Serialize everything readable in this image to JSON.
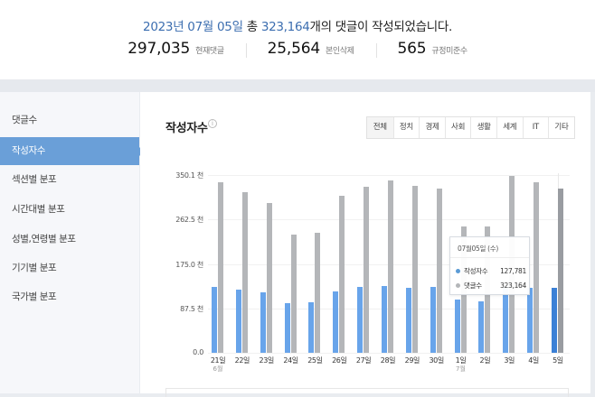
{
  "header": {
    "date_text": "2023년 07월 05일",
    "total_prefix": "총",
    "total_count": "323,164",
    "suffix": "개의 댓글이 작성되었습니다.",
    "stats": [
      {
        "value": "297,035",
        "label": "현재댓글"
      },
      {
        "value": "25,564",
        "label": "본인삭제"
      },
      {
        "value": "565",
        "label": "규정미준수"
      }
    ]
  },
  "sidebar": {
    "items": [
      {
        "label": "댓글수",
        "active": false
      },
      {
        "label": "작성자수",
        "active": true
      },
      {
        "label": "섹션별 분포",
        "active": false
      },
      {
        "label": "시간대별 분포",
        "active": false
      },
      {
        "label": "성별,연령별 분포",
        "active": false
      },
      {
        "label": "기기별 분포",
        "active": false
      },
      {
        "label": "국가별 분포",
        "active": false
      }
    ]
  },
  "main": {
    "title": "작성자수",
    "info_icon": "i",
    "tabs": [
      "전체",
      "정치",
      "경제",
      "사회",
      "생활",
      "세계",
      "IT",
      "기타"
    ],
    "selected_tab": "전체"
  },
  "tooltip": {
    "date": "07월05일 (수)",
    "rows": [
      {
        "label": "작성자수",
        "value": "127,781",
        "color": "#5b9bd5"
      },
      {
        "label": "댓글수",
        "value": "323,164",
        "color": "#b4b6b9"
      }
    ]
  },
  "chart_data": {
    "type": "bar",
    "title": "작성자수",
    "xlabel": "",
    "ylabel": "",
    "ylim": [
      0,
      350.1
    ],
    "y_unit": "천",
    "y_ticks": [
      "350.1 천",
      "262.5 천",
      "175.0 천",
      "87.5 천",
      "0.0"
    ],
    "y_tick_values": [
      350.1,
      262.5,
      175.0,
      87.5,
      0.0
    ],
    "grid": true,
    "categories": [
      "21일",
      "22일",
      "23일",
      "24일",
      "25일",
      "26일",
      "27일",
      "28일",
      "29일",
      "30일",
      "1일",
      "2일",
      "3일",
      "4일",
      "5일"
    ],
    "category_sublabels": {
      "0": "6월",
      "10": "7월"
    },
    "series": [
      {
        "name": "작성자수",
        "color": "#68a4ea",
        "values": [
          130,
          124,
          119,
          98,
          100,
          121,
          130,
          132,
          128,
          130,
          105,
          101,
          130,
          128,
          127.781
        ]
      },
      {
        "name": "댓글수",
        "color": "#b4b6b9",
        "values": [
          336,
          316,
          295,
          233,
          236,
          309,
          327,
          339,
          329,
          323,
          249,
          249,
          348,
          336,
          323.164
        ]
      }
    ],
    "highlighted_index": 14,
    "legend_position": "tooltip"
  }
}
